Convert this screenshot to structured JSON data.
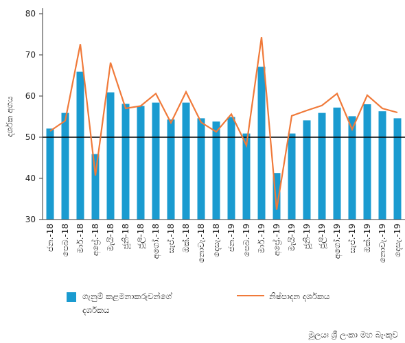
{
  "chart_data": {
    "type": "bar_line",
    "y_label": "දර්ශක අගය",
    "categories": [
      "ජන.-18",
      "පෙබ.-18",
      "මාර්.-18",
      "අප්‍රේ.-18",
      "මැයි-18",
      "ජූනි-18",
      "ජූලි-18",
      "අගෝ.-18",
      "සැප්.-18",
      "ඔක්.-18",
      "නොවැ.-18",
      "දෙසැ.-18",
      "ජන.-19",
      "පෙබ.-19",
      "මාර්.-19",
      "අප්‍රේ.-19",
      "මැයි-19",
      "ජූනි-19",
      "ජූලි-19",
      "අගෝ.-19",
      "සැප්.-19",
      "ඔක්.-19",
      "නොවැ.-19",
      "දෙසැ.-19"
    ],
    "series": [
      {
        "name": "ගැනුම් කළමනාකරුවන්ගේ දර්ශකය",
        "type": "bar",
        "color": "#1a9bd0",
        "values": [
          52.1,
          55.9,
          65.9,
          45.9,
          60.9,
          58.1,
          57.6,
          58.4,
          54.3,
          58.4,
          54.6,
          53.8,
          54.9,
          50.9,
          67.1,
          41.3,
          50.9,
          54.1,
          55.9,
          57.2,
          55.1,
          58.0,
          56.3,
          54.6
        ]
      },
      {
        "name": "නිෂ්පාදන දර්ශකය",
        "type": "line",
        "color": "#f07a3a",
        "values": [
          51.5,
          54.0,
          72.6,
          40.7,
          68.1,
          57.0,
          57.6,
          60.6,
          53.5,
          61.0,
          53.6,
          51.3,
          55.6,
          48.0,
          74.3,
          32.4,
          55.2,
          56.5,
          57.7,
          60.6,
          51.9,
          60.2,
          57.0,
          56.0
        ]
      }
    ],
    "ylim": [
      30,
      80
    ],
    "yticks": [
      30,
      40,
      50,
      60,
      70,
      80
    ],
    "reference_line": 50,
    "source": "මූලයඃ ශ්‍රී ලංකා මහ බැංකුව"
  }
}
